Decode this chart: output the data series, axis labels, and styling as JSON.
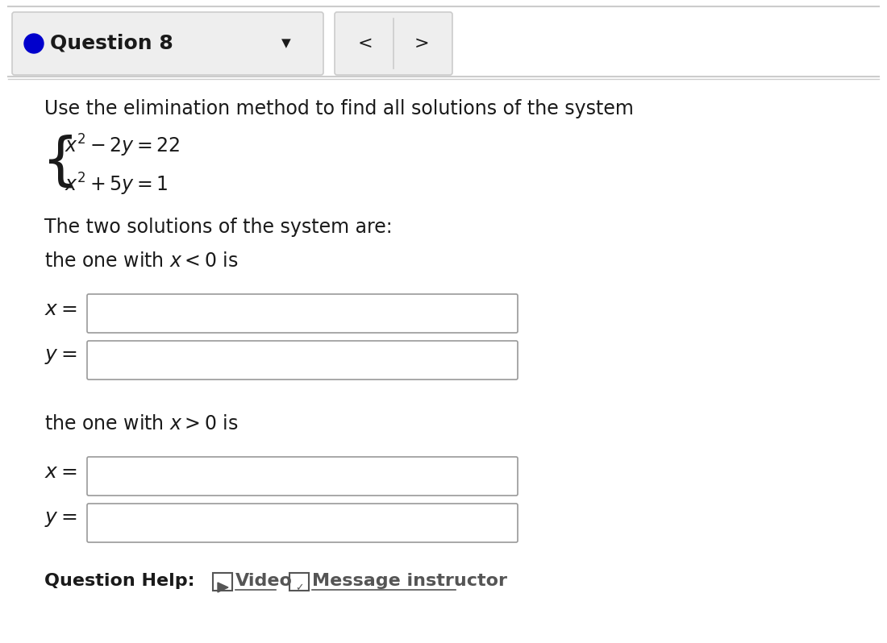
{
  "bg_color": "#f5f5f5",
  "white": "#ffffff",
  "border_color": "#cccccc",
  "dark_border": "#999999",
  "text_color": "#1a1a1a",
  "link_color": "#555555",
  "blue_dot_color": "#0000cc",
  "header_bg": "#eeeeee",
  "title": "Question 8",
  "intro_text": "Use the elimination method to find all solutions of the system",
  "eq1": "$x^2 - 2y = 22$",
  "eq2": "$x^2 + 5y = 1$",
  "solutions_text": "The two solutions of the system are:",
  "cond1": "the one with $x < 0$ is",
  "cond2": "the one with $x > 0$ is",
  "label_x": "$x =$",
  "label_y": "$y =$",
  "help_text": "Question Help:",
  "video_text": "Video",
  "msg_text": "Message instructor",
  "figsize": [
    11.0,
    7.98
  ],
  "dpi": 100
}
